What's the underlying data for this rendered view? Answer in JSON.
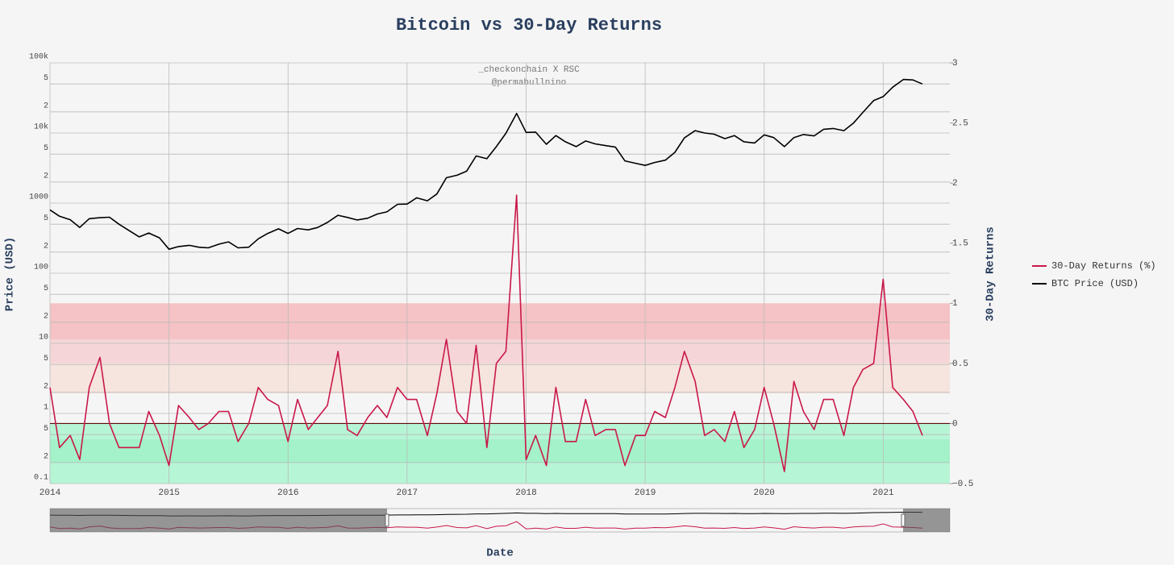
{
  "chart_data": {
    "type": "line",
    "title": "Bitcoin vs 30-Day Returns",
    "annotations": [
      "_checkonchain X RSC",
      "@permabullnino"
    ],
    "xlabel": "Date",
    "ylabel": "Price (USD)",
    "y2label": "30-Day Returns",
    "legend": "right",
    "grid": true,
    "yscale": "log",
    "zeroline": true,
    "x": [
      2014.0,
      2014.08,
      2014.17,
      2014.25,
      2014.33,
      2014.42,
      2014.5,
      2014.58,
      2014.67,
      2014.75,
      2014.83,
      2014.92,
      2015.0,
      2015.08,
      2015.17,
      2015.25,
      2015.33,
      2015.42,
      2015.5,
      2015.58,
      2015.67,
      2015.75,
      2015.83,
      2015.92,
      2016.0,
      2016.08,
      2016.17,
      2016.25,
      2016.33,
      2016.42,
      2016.5,
      2016.58,
      2016.67,
      2016.75,
      2016.83,
      2016.92,
      2017.0,
      2017.08,
      2017.17,
      2017.25,
      2017.33,
      2017.42,
      2017.5,
      2017.58,
      2017.67,
      2017.75,
      2017.83,
      2017.92,
      2018.0,
      2018.08,
      2018.17,
      2018.25,
      2018.33,
      2018.42,
      2018.5,
      2018.58,
      2018.67,
      2018.75,
      2018.83,
      2018.92,
      2019.0,
      2019.08,
      2019.17,
      2019.25,
      2019.33,
      2019.42,
      2019.5,
      2019.58,
      2019.67,
      2019.75,
      2019.83,
      2019.92,
      2020.0,
      2020.08,
      2020.17,
      2020.25,
      2020.33,
      2020.42,
      2020.5,
      2020.58,
      2020.67,
      2020.75,
      2020.83,
      2020.92,
      2021.0,
      2021.08,
      2021.17,
      2021.25,
      2021.33
    ],
    "series": [
      {
        "name": "30-Day Returns (%)",
        "color": "#c9184a",
        "axis": "y2",
        "values": [
          0.3,
          -0.2,
          -0.1,
          -0.3,
          0.3,
          0.55,
          0.0,
          -0.2,
          -0.2,
          -0.2,
          0.1,
          -0.1,
          -0.35,
          0.15,
          0.05,
          -0.05,
          0.0,
          0.1,
          0.1,
          -0.15,
          0.0,
          0.3,
          0.2,
          0.15,
          -0.15,
          0.2,
          -0.05,
          0.05,
          0.15,
          0.6,
          -0.05,
          -0.1,
          0.05,
          0.15,
          0.05,
          0.3,
          0.2,
          0.2,
          -0.1,
          0.25,
          0.7,
          0.1,
          0.0,
          0.65,
          -0.2,
          0.5,
          0.6,
          1.9,
          -0.3,
          -0.1,
          -0.35,
          0.3,
          -0.15,
          -0.15,
          0.2,
          -0.1,
          -0.05,
          -0.05,
          -0.35,
          -0.1,
          -0.1,
          0.1,
          0.05,
          0.3,
          0.6,
          0.35,
          -0.1,
          -0.05,
          -0.15,
          0.1,
          -0.2,
          -0.05,
          0.3,
          0.0,
          -0.4,
          0.35,
          0.1,
          -0.05,
          0.2,
          0.2,
          -0.1,
          0.3,
          0.45,
          0.5,
          1.2,
          0.3,
          0.2,
          0.1,
          -0.1
        ]
      },
      {
        "name": "BTC Price (USD)",
        "color": "#000000",
        "values": [
          800,
          650,
          580,
          450,
          600,
          620,
          630,
          500,
          400,
          330,
          375,
          320,
          220,
          240,
          250,
          235,
          230,
          260,
          280,
          230,
          235,
          310,
          370,
          430,
          370,
          435,
          415,
          450,
          530,
          670,
          625,
          575,
          610,
          700,
          750,
          960,
          970,
          1190,
          1080,
          1350,
          2300,
          2500,
          2850,
          4700,
          4300,
          6400,
          9900,
          19000,
          10200,
          10300,
          6900,
          9200,
          7500,
          6400,
          7700,
          7000,
          6600,
          6300,
          4000,
          3700,
          3450,
          3800,
          4100,
          5300,
          8500,
          10800,
          10000,
          9600,
          8300,
          9200,
          7500,
          7200,
          9400,
          8600,
          6400,
          8600,
          9500,
          9100,
          11300,
          11600,
          10800,
          13800,
          19700,
          29000,
          33000,
          45000,
          58000,
          57000,
          50000
        ]
      }
    ],
    "bands": [
      {
        "y2": [
          -0.5,
          -0.33
        ],
        "color": "#b6f5d6"
      },
      {
        "y2": [
          -0.33,
          -0.13
        ],
        "color": "#a3f2c9"
      },
      {
        "y2": [
          -0.13,
          0
        ],
        "color": "#b6f5d6"
      },
      {
        "y2": [
          0.25,
          0.5
        ],
        "color": "#f6e4de"
      },
      {
        "y2": [
          0.5,
          0.7
        ],
        "color": "#f5d5d7"
      },
      {
        "y2": [
          0.7,
          1
        ],
        "color": "#f5c3c5"
      }
    ],
    "xlim": [
      2014,
      2021.56
    ],
    "xticks": [
      2014,
      2015,
      2016,
      2017,
      2018,
      2019,
      2020,
      2021
    ],
    "ylim": [
      0.1,
      100000
    ],
    "yticks": [
      0.1,
      {
        "value": 0.2,
        "label": "2"
      },
      {
        "value": 0.5,
        "label": "5"
      },
      1,
      2,
      5,
      10,
      {
        "value": 20,
        "label": "2"
      },
      {
        "value": 50,
        "label": "5"
      },
      100,
      {
        "value": 200,
        "label": "2"
      },
      {
        "value": 500,
        "label": "5"
      },
      1000,
      {
        "value": 2000,
        "label": "2"
      },
      {
        "value": 5000,
        "label": "5"
      },
      {
        "value": 10000,
        "label": "10k"
      },
      {
        "value": 20000,
        "label": "2"
      },
      {
        "value": 50000,
        "label": "5"
      },
      {
        "value": 100000,
        "label": "100k"
      }
    ],
    "y2lim": [
      -0.5,
      3
    ],
    "y2ticks": [
      {
        "value": -0.5,
        "label": "−0.5"
      },
      0,
      0.5,
      1,
      1.5,
      2,
      2.5,
      3
    ]
  }
}
